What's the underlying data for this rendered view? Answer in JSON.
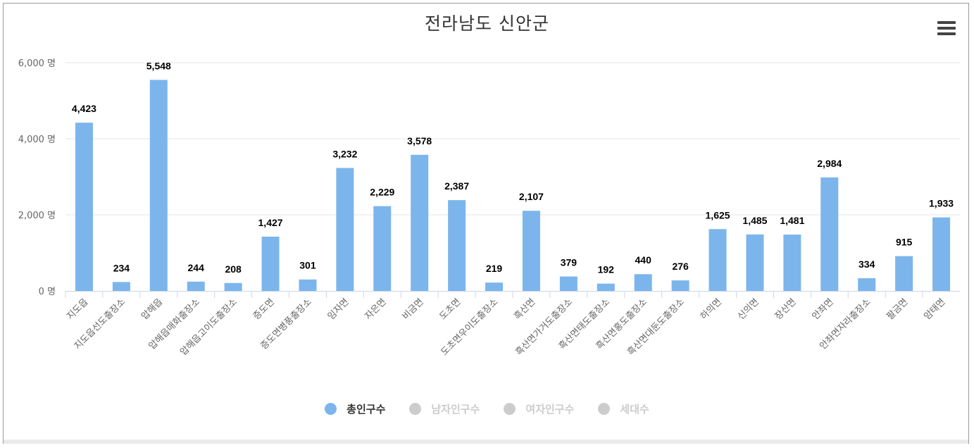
{
  "chart": {
    "title": "전라남도 신안군"
  },
  "legend": [
    {
      "label": "총인구수",
      "color": "#7cb5ec",
      "active": true
    },
    {
      "label": "남자인구수",
      "color": "#cccccc",
      "active": false
    },
    {
      "label": "여자인구수",
      "color": "#cccccc",
      "active": false
    },
    {
      "label": "세대수",
      "color": "#cccccc",
      "active": false
    }
  ],
  "colors": {
    "bar": "#7cb5ec",
    "grid": "#e6e6e6",
    "axis": "#ccd6eb",
    "label_text": "#000000",
    "tick_text": "#666666",
    "legend_active_text": "#333333",
    "legend_inactive_text": "#cccccc"
  },
  "chart_data": {
    "type": "bar",
    "title": "전라남도 신안군",
    "categories": [
      "지도읍",
      "지도읍선도출장소",
      "압해읍",
      "압해읍매화출장소",
      "압해읍고이도출장소",
      "증도면",
      "증도면병풍출장소",
      "임자면",
      "자은면",
      "비금면",
      "도초면",
      "도초면우이도출장소",
      "흑산면",
      "흑산면가거도출장소",
      "흑산면태도출장소",
      "흑산면홍도출장소",
      "흑산면대둔도출장소",
      "하의면",
      "신의면",
      "장산면",
      "안좌면",
      "안좌면자라출장소",
      "팔금면",
      "암태면"
    ],
    "series": [
      {
        "name": "총인구수",
        "values": [
          4423,
          234,
          5548,
          244,
          208,
          1427,
          301,
          3232,
          2229,
          3578,
          2387,
          219,
          2107,
          379,
          192,
          440,
          276,
          1625,
          1485,
          1481,
          2984,
          334,
          915,
          1933
        ]
      }
    ],
    "data_labels": [
      "4,423",
      "234",
      "5,548",
      "244",
      "208",
      "1,427",
      "301",
      "3,232",
      "2,229",
      "3,578",
      "2,387",
      "219",
      "2,107",
      "379",
      "192",
      "440",
      "276",
      "1,625",
      "1,485",
      "1,481",
      "2,984",
      "334",
      "915",
      "1,933"
    ],
    "ylim": [
      0,
      6000
    ],
    "yticks": [
      0,
      2000,
      4000,
      6000
    ],
    "ytick_labels": [
      "0 명",
      "2,000 명",
      "4,000 명",
      "6,000 명"
    ],
    "xlabel": "",
    "ylabel": "",
    "grid": true,
    "legend_position": "bottom-center"
  }
}
